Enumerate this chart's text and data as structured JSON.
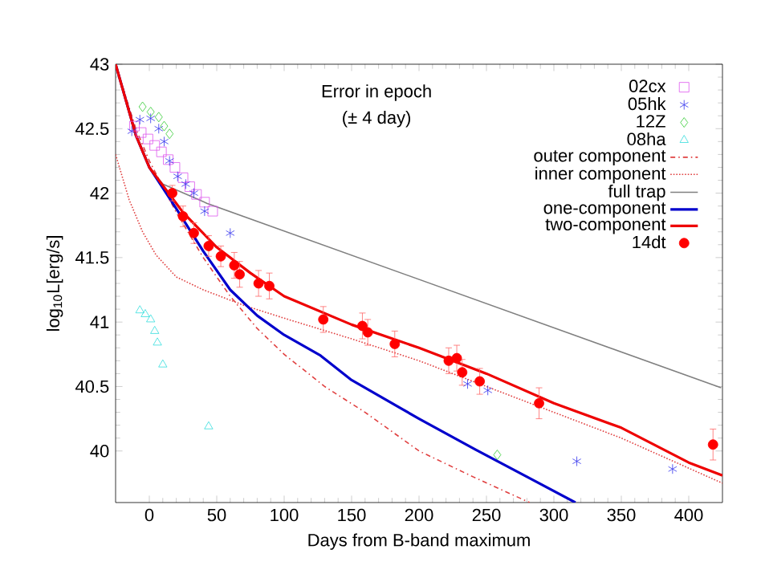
{
  "chart_data": {
    "type": "scatter",
    "xlabel": "Days from B-band maximum",
    "ylabel": "log$_{10}$L[erg/s]",
    "xlim": [
      -25,
      425
    ],
    "ylim": [
      39.6,
      43
    ],
    "xticks": [
      0,
      50,
      100,
      150,
      200,
      250,
      300,
      350,
      400
    ],
    "yticks": [
      40,
      40.5,
      41,
      41.5,
      42,
      42.5,
      43
    ],
    "legend": "top right",
    "annotations": [
      "Error in epoch",
      "(± 4 day)"
    ],
    "series": [
      {
        "name": "02cx",
        "color": "#dd55ee",
        "marker": "square",
        "x": [
          -11,
          -6,
          -1,
          4,
          9,
          14,
          19,
          25,
          30,
          35,
          41,
          47
        ],
        "values": [
          42.52,
          42.47,
          42.42,
          42.37,
          42.32,
          42.26,
          42.2,
          42.12,
          42.05,
          41.99,
          41.93,
          41.86
        ]
      },
      {
        "name": "05hk",
        "color": "#3333ee",
        "marker": "cross",
        "x": [
          -13,
          -7,
          1,
          7,
          11,
          15,
          21,
          27,
          33,
          41,
          60,
          236,
          251,
          317,
          388
        ],
        "values": [
          42.48,
          42.57,
          42.58,
          42.5,
          42.4,
          42.25,
          42.13,
          42.07,
          42.0,
          41.86,
          41.69,
          40.52,
          40.47,
          39.92,
          39.86
        ]
      },
      {
        "name": "12Z",
        "color": "#33cc33",
        "marker": "diamond",
        "x": [
          -5,
          1,
          7,
          11,
          15,
          258
        ],
        "values": [
          42.67,
          42.63,
          42.59,
          42.52,
          42.46,
          39.97
        ]
      },
      {
        "name": "08ha",
        "color": "#33dddd",
        "marker": "triangle",
        "x": [
          -7,
          -3,
          1,
          4,
          6,
          10,
          44
        ],
        "values": [
          41.09,
          41.06,
          41.02,
          40.93,
          40.84,
          40.67,
          40.19
        ]
      },
      {
        "name": "outer component",
        "type": "line",
        "color": "#e04040",
        "line_style": "dashdot",
        "x": [
          -25,
          -10,
          0,
          20,
          40,
          60,
          80,
          100,
          130,
          160,
          200,
          240,
          282
        ],
        "values": [
          43,
          42.5,
          42.25,
          41.85,
          41.5,
          41.2,
          40.95,
          40.75,
          40.5,
          40.3,
          40.0,
          39.8,
          39.6
        ]
      },
      {
        "name": "inner component",
        "type": "line",
        "color": "#e04040",
        "line_style": "dotted",
        "x": [
          -25,
          -15,
          -5,
          5,
          20,
          40,
          70,
          100,
          150,
          200,
          250,
          300,
          350,
          425
        ],
        "values": [
          42.3,
          41.95,
          41.7,
          41.52,
          41.35,
          41.25,
          41.13,
          41.03,
          40.87,
          40.7,
          40.5,
          40.3,
          40.1,
          39.75
        ]
      },
      {
        "name": "full trap",
        "type": "line",
        "color": "#808080",
        "line_style": "solid",
        "x": [
          -25,
          -10,
          0,
          10,
          43,
          424
        ],
        "values": [
          43,
          42.45,
          42.2,
          42.07,
          41.92,
          40.49
        ]
      },
      {
        "name": "one-component",
        "type": "line",
        "color": "#0000cc",
        "line_style": "solid",
        "x": [
          -25,
          -10,
          0,
          20,
          40,
          60,
          80,
          100,
          127,
          150,
          175,
          200,
          242,
          280,
          316
        ],
        "values": [
          43,
          42.45,
          42.2,
          41.88,
          41.55,
          41.25,
          41.05,
          40.9,
          40.74,
          40.55,
          40.4,
          40.25,
          40.01,
          39.8,
          39.6
        ]
      },
      {
        "name": "two-component",
        "type": "line",
        "color": "#ee0000",
        "line_style": "solid",
        "x": [
          -25,
          -10,
          0,
          25,
          50,
          75,
          100,
          150,
          200,
          250,
          300,
          350,
          400,
          425
        ],
        "values": [
          43,
          42.45,
          42.2,
          41.85,
          41.58,
          41.38,
          41.2,
          40.98,
          40.8,
          40.6,
          40.37,
          40.18,
          39.91,
          39.81
        ]
      },
      {
        "name": "14dt",
        "color": "#ff0000",
        "marker": "circle",
        "x": [
          17,
          25,
          33,
          44,
          53,
          63,
          67,
          81,
          89,
          129,
          158,
          162,
          182,
          222,
          228,
          232,
          245,
          289,
          418
        ],
        "values": [
          42.0,
          41.82,
          41.69,
          41.59,
          41.51,
          41.44,
          41.37,
          41.3,
          41.28,
          41.02,
          40.97,
          40.92,
          40.83,
          40.7,
          40.72,
          40.61,
          40.54,
          40.37,
          40.05
        ],
        "errors": [
          0.06,
          0.08,
          0.08,
          0.08,
          0.08,
          0.1,
          0.1,
          0.1,
          0.1,
          0.1,
          0.1,
          0.1,
          0.1,
          0.1,
          0.1,
          0.1,
          0.1,
          0.12,
          0.12
        ]
      }
    ]
  }
}
